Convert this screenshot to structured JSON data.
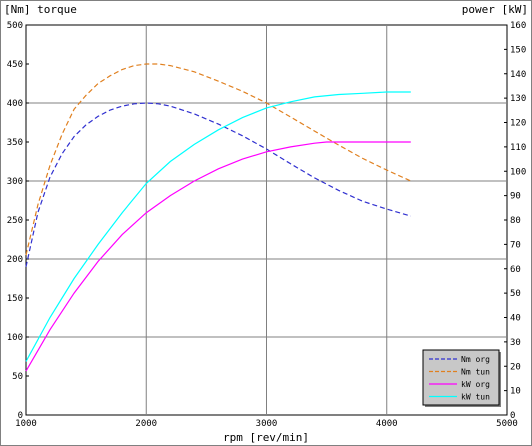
{
  "chart_data": {
    "type": "line",
    "left_axis_title": "[Nm] torque",
    "right_axis_title": "power [kW]",
    "x_axis_title": "rpm [rev/min]",
    "xlim": [
      1000,
      5000
    ],
    "ylim_left": [
      0,
      500
    ],
    "ylim_right": [
      0,
      160
    ],
    "x_ticks": [
      "1000",
      "2000",
      "3000",
      "4000",
      "5000"
    ],
    "y_ticks_left": [
      "0",
      "50",
      "100",
      "150",
      "200",
      "250",
      "300",
      "350",
      "400",
      "450",
      "500"
    ],
    "y_ticks_right": [
      "0",
      "10",
      "20",
      "30",
      "40",
      "50",
      "60",
      "70",
      "80",
      "90",
      "100",
      "110",
      "120",
      "130",
      "140",
      "150",
      "160"
    ],
    "grid": true,
    "legend_position": "bottom-right",
    "series": [
      {
        "name": "Nm org",
        "axis": "left",
        "dash": "dashed",
        "color": "#3030d0",
        "x": [
          1000,
          1100,
          1200,
          1300,
          1400,
          1500,
          1600,
          1700,
          1800,
          1900,
          2000,
          2100,
          2200,
          2400,
          2600,
          2800,
          3000,
          3200,
          3400,
          3600,
          3800,
          4000,
          4200
        ],
        "y": [
          190,
          260,
          305,
          335,
          357,
          372,
          383,
          391,
          396,
          399,
          400,
          399,
          396,
          386,
          373,
          358,
          341,
          322,
          304,
          288,
          274,
          264,
          255
        ]
      },
      {
        "name": "Nm tun",
        "axis": "left",
        "dash": "dashed",
        "color": "#e08020",
        "x": [
          1000,
          1100,
          1200,
          1300,
          1400,
          1500,
          1600,
          1700,
          1800,
          1900,
          2000,
          2100,
          2200,
          2400,
          2600,
          2800,
          3000,
          3200,
          3400,
          3600,
          3800,
          4000,
          4200
        ],
        "y": [
          205,
          270,
          320,
          360,
          392,
          410,
          425,
          435,
          443,
          448,
          450,
          450,
          448,
          440,
          428,
          415,
          400,
          382,
          364,
          346,
          329,
          314,
          300
        ]
      },
      {
        "name": "kW org",
        "axis": "right",
        "dash": "solid",
        "color": "#ff00ff",
        "x": [
          1000,
          1200,
          1400,
          1600,
          1800,
          2000,
          2200,
          2400,
          2600,
          2800,
          3000,
          3200,
          3400,
          3500,
          3600,
          3800,
          4000,
          4200
        ],
        "y": [
          18,
          35,
          50,
          63,
          74,
          83,
          90,
          96,
          101,
          105,
          108,
          110,
          111.5,
          112,
          112,
          112,
          112,
          112
        ]
      },
      {
        "name": "kW tun",
        "axis": "right",
        "dash": "solid",
        "color": "#00ffff",
        "x": [
          1000,
          1200,
          1400,
          1600,
          1800,
          2000,
          2200,
          2400,
          2600,
          2800,
          3000,
          3200,
          3400,
          3600,
          3800,
          4000,
          4200
        ],
        "y": [
          22,
          40,
          56,
          70,
          83,
          95,
          104,
          111,
          117,
          122,
          126,
          128.5,
          130.5,
          131.5,
          132,
          132.5,
          132.5
        ]
      }
    ]
  }
}
